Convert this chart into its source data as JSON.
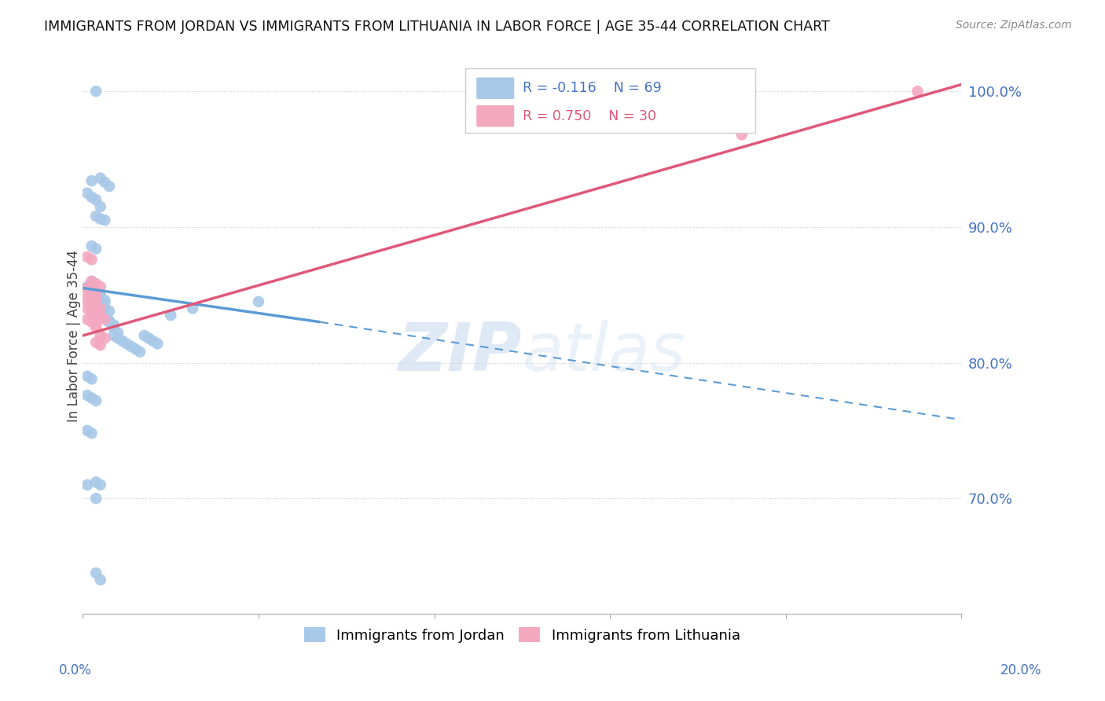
{
  "title": "IMMIGRANTS FROM JORDAN VS IMMIGRANTS FROM LITHUANIA IN LABOR FORCE | AGE 35-44 CORRELATION CHART",
  "source": "Source: ZipAtlas.com",
  "ylabel": "In Labor Force | Age 35-44",
  "legend_jordan_r": "R = -0.116",
  "legend_jordan_n": "N = 69",
  "legend_lithuania_r": "R = 0.750",
  "legend_lithuania_n": "N = 30",
  "jordan_color": "#a8c8e8",
  "lithuania_color": "#f4a8c0",
  "jordan_line_color": "#5b9bd5",
  "lithuania_line_color": "#e05878",
  "watermark": "ZIPatlas",
  "xlim": [
    0.0,
    0.2
  ],
  "ylim": [
    0.615,
    1.025
  ],
  "yticks": [
    0.7,
    0.8,
    0.9,
    1.0
  ],
  "ytick_labels": [
    "70.0%",
    "80.0%",
    "90.0%",
    "100.0%"
  ],
  "xticks": [
    0.0,
    0.04,
    0.08,
    0.12,
    0.16,
    0.2
  ],
  "jordan_x": [
    0.003,
    0.002,
    0.004,
    0.005,
    0.006,
    0.003,
    0.004,
    0.005,
    0.001,
    0.002,
    0.003,
    0.004,
    0.002,
    0.003,
    0.002,
    0.003,
    0.001,
    0.002,
    0.003,
    0.004,
    0.002,
    0.003,
    0.004,
    0.005,
    0.003,
    0.004,
    0.005,
    0.003,
    0.004,
    0.005,
    0.006,
    0.002,
    0.003,
    0.004,
    0.005,
    0.004,
    0.005,
    0.006,
    0.006,
    0.007,
    0.007,
    0.008,
    0.007,
    0.008,
    0.009,
    0.01,
    0.011,
    0.012,
    0.013,
    0.014,
    0.015,
    0.016,
    0.017,
    0.02,
    0.025,
    0.04,
    0.001,
    0.002,
    0.001,
    0.002,
    0.003,
    0.001,
    0.002,
    0.001,
    0.003,
    0.004,
    0.003,
    0.003,
    0.004
  ],
  "jordan_y": [
    1.0,
    0.934,
    0.936,
    0.933,
    0.93,
    0.908,
    0.906,
    0.905,
    0.925,
    0.922,
    0.92,
    0.915,
    0.886,
    0.884,
    0.86,
    0.858,
    0.856,
    0.854,
    0.852,
    0.85,
    0.852,
    0.85,
    0.848,
    0.846,
    0.848,
    0.846,
    0.844,
    0.844,
    0.842,
    0.84,
    0.838,
    0.84,
    0.838,
    0.836,
    0.834,
    0.835,
    0.833,
    0.831,
    0.83,
    0.828,
    0.826,
    0.822,
    0.82,
    0.818,
    0.816,
    0.814,
    0.812,
    0.81,
    0.808,
    0.82,
    0.818,
    0.816,
    0.814,
    0.835,
    0.84,
    0.845,
    0.79,
    0.788,
    0.776,
    0.774,
    0.772,
    0.75,
    0.748,
    0.71,
    0.712,
    0.71,
    0.7,
    0.645,
    0.64
  ],
  "lithuania_x": [
    0.001,
    0.002,
    0.002,
    0.003,
    0.004,
    0.001,
    0.002,
    0.003,
    0.001,
    0.002,
    0.003,
    0.001,
    0.002,
    0.003,
    0.004,
    0.001,
    0.002,
    0.003,
    0.004,
    0.005,
    0.001,
    0.002,
    0.003,
    0.003,
    0.004,
    0.005,
    0.003,
    0.004,
    0.15,
    0.19
  ],
  "lithuania_y": [
    0.878,
    0.876,
    0.86,
    0.858,
    0.856,
    0.855,
    0.853,
    0.851,
    0.851,
    0.849,
    0.847,
    0.846,
    0.844,
    0.842,
    0.84,
    0.84,
    0.838,
    0.836,
    0.834,
    0.832,
    0.832,
    0.83,
    0.828,
    0.826,
    0.82,
    0.818,
    0.815,
    0.813,
    0.968,
    1.0
  ],
  "jordan_trend_x0": 0.0,
  "jordan_trend_y0": 0.855,
  "jordan_trend_x1": 0.054,
  "jordan_trend_y1": 0.83,
  "jordan_trend_x2": 0.054,
  "jordan_trend_y2": 0.83,
  "jordan_trend_x3": 0.2,
  "jordan_trend_y3": 0.758,
  "lithuania_trend_x0": 0.0,
  "lithuania_trend_y0": 0.82,
  "lithuania_trend_x1": 0.2,
  "lithuania_trend_y1": 1.005
}
